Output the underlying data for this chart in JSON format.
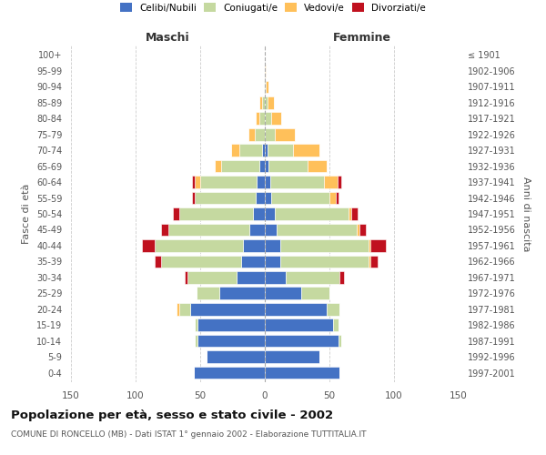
{
  "age_groups": [
    "0-4",
    "5-9",
    "10-14",
    "15-19",
    "20-24",
    "25-29",
    "30-34",
    "35-39",
    "40-44",
    "45-49",
    "50-54",
    "55-59",
    "60-64",
    "65-69",
    "70-74",
    "75-79",
    "80-84",
    "85-89",
    "90-94",
    "95-99",
    "100+"
  ],
  "birth_years": [
    "1997-2001",
    "1992-1996",
    "1987-1991",
    "1982-1986",
    "1977-1981",
    "1972-1976",
    "1967-1971",
    "1962-1966",
    "1957-1961",
    "1952-1956",
    "1947-1951",
    "1942-1946",
    "1937-1941",
    "1932-1936",
    "1927-1931",
    "1922-1926",
    "1917-1921",
    "1912-1916",
    "1907-1911",
    "1902-1906",
    "≤ 1901"
  ],
  "maschi": {
    "celibi": [
      55,
      45,
      52,
      52,
      58,
      35,
      22,
      18,
      17,
      12,
      9,
      7,
      6,
      4,
      2,
      0,
      0,
      0,
      0,
      0,
      0
    ],
    "coniugati": [
      0,
      0,
      2,
      2,
      8,
      18,
      38,
      62,
      68,
      63,
      57,
      47,
      44,
      30,
      18,
      8,
      4,
      2,
      1,
      0,
      0
    ],
    "vedovi": [
      0,
      0,
      0,
      0,
      2,
      0,
      0,
      0,
      0,
      0,
      0,
      0,
      4,
      5,
      6,
      5,
      3,
      2,
      0,
      0,
      0
    ],
    "divorziati": [
      0,
      0,
      0,
      0,
      0,
      0,
      2,
      5,
      10,
      5,
      5,
      2,
      2,
      0,
      0,
      0,
      0,
      0,
      0,
      0,
      0
    ]
  },
  "femmine": {
    "nubili": [
      58,
      42,
      57,
      53,
      48,
      28,
      16,
      12,
      12,
      9,
      8,
      5,
      4,
      3,
      2,
      0,
      0,
      0,
      0,
      0,
      0
    ],
    "coniugate": [
      0,
      0,
      2,
      4,
      10,
      22,
      42,
      68,
      68,
      62,
      57,
      45,
      42,
      30,
      20,
      8,
      5,
      2,
      1,
      0,
      0
    ],
    "vedove": [
      0,
      0,
      0,
      0,
      0,
      0,
      0,
      2,
      2,
      2,
      2,
      5,
      10,
      15,
      20,
      15,
      8,
      5,
      2,
      1,
      0
    ],
    "divorziate": [
      0,
      0,
      0,
      0,
      0,
      0,
      3,
      5,
      12,
      5,
      5,
      2,
      3,
      0,
      0,
      0,
      0,
      0,
      0,
      0,
      0
    ]
  },
  "color_celibi": "#4472c4",
  "color_coniugati": "#c5d9a0",
  "color_vedovi": "#ffc05a",
  "color_divorziati": "#c0111f",
  "title": "Popolazione per età, sesso e stato civile - 2002",
  "subtitle": "COMUNE DI RONCELLO (MB) - Dati ISTAT 1° gennaio 2002 - Elaborazione TUTTITALIA.IT",
  "xlabel_left": "Maschi",
  "xlabel_right": "Femmine",
  "ylabel_left": "Fasce di età",
  "ylabel_right": "Anni di nascita",
  "xlim": 150,
  "background_color": "#ffffff",
  "grid_color": "#cccccc"
}
